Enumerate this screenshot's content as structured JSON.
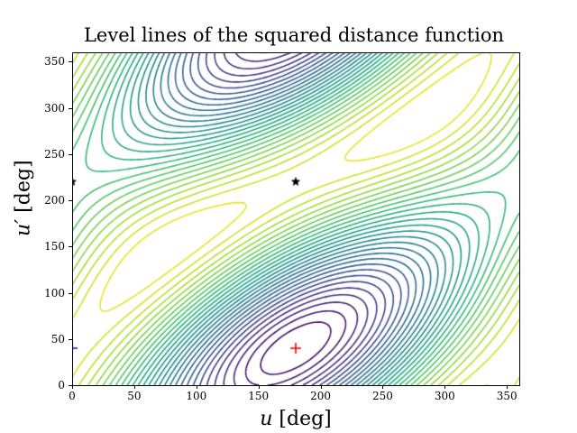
{
  "chart_data": {
    "type": "contour",
    "title": "Level lines of the squared distance function",
    "xlabel_var": "u",
    "xlabel_unit": "[deg]",
    "ylabel_var": "u′",
    "ylabel_unit": "[deg]",
    "xlim": [
      0,
      360
    ],
    "ylim": [
      0,
      360
    ],
    "xticks": [
      0,
      50,
      100,
      150,
      200,
      250,
      300,
      350
    ],
    "yticks": [
      0,
      50,
      100,
      150,
      200,
      250,
      300,
      350
    ],
    "colormap": "viridis",
    "num_levels": 30,
    "grid": false,
    "critical_points": {
      "maximum": {
        "u": 180,
        "u_prime": 40
      },
      "saddles": [
        {
          "u": 0,
          "u_prime": 220
        },
        {
          "u": 180,
          "u_prime": 220
        }
      ]
    },
    "markers": [
      {
        "label": "max",
        "symbol": "+",
        "color": "#ff0000",
        "u": 180,
        "u_prime": 40
      },
      {
        "label": "boundary-max",
        "symbol": "+",
        "color": "#0000ff",
        "u": 0,
        "u_prime": 40
      },
      {
        "label": "saddle",
        "symbol": "star",
        "color": "#000000",
        "u": 180,
        "u_prime": 220
      },
      {
        "label": "saddle-boundary",
        "symbol": "star",
        "color": "#000000",
        "u": 0,
        "u_prime": 220
      }
    ]
  }
}
